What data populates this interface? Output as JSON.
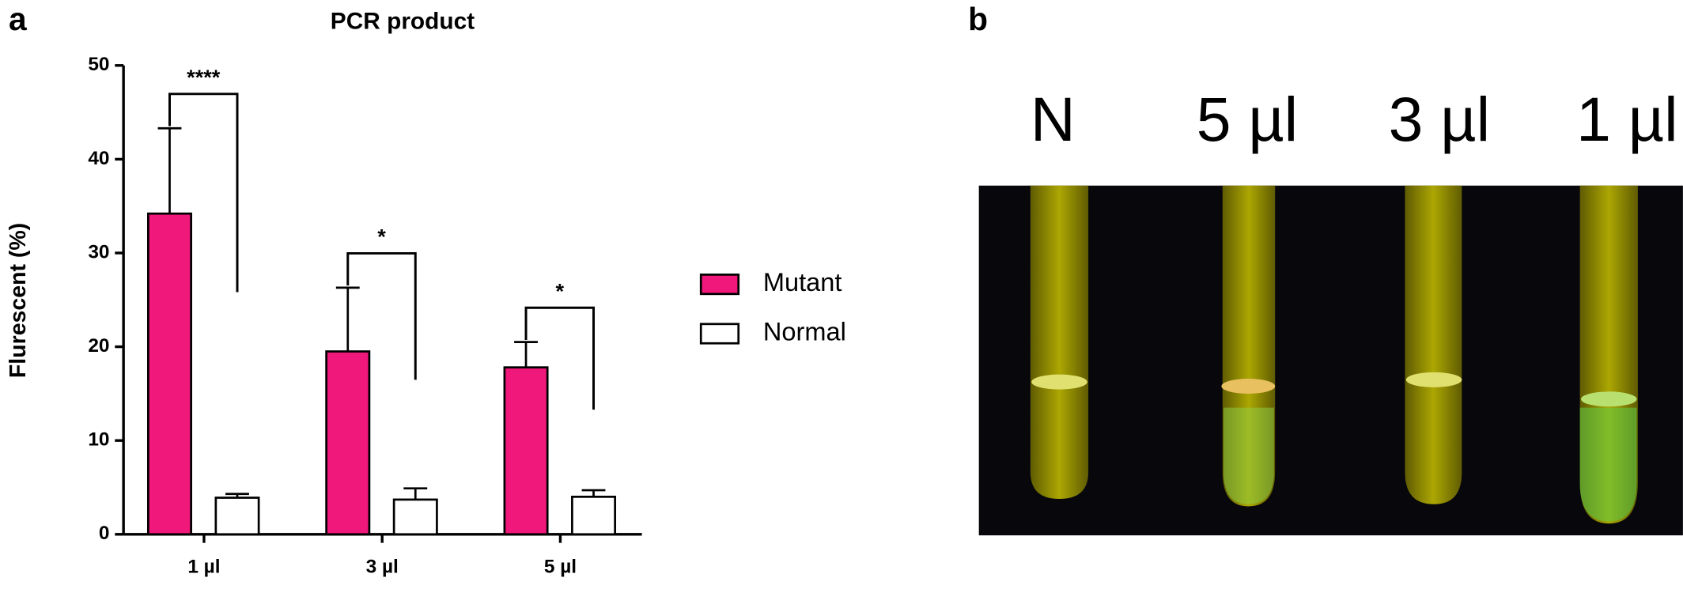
{
  "chart_data": {
    "type": "bar",
    "title": "PCR product",
    "y_label": "Flurescent (%)",
    "categories": [
      "1 µl",
      "3 µl",
      "5 µl"
    ],
    "series": [
      {
        "name": "Mutant",
        "color": "#f0187a",
        "values": [
          34.2,
          19.5,
          17.8
        ],
        "errors": [
          9.1,
          6.8,
          2.7
        ]
      },
      {
        "name": "Normal",
        "color": "#ffffff",
        "values": [
          3.9,
          3.7,
          4.0
        ],
        "errors": [
          0.4,
          1.2,
          0.7
        ]
      }
    ],
    "significance": [
      "****",
      "*",
      "*"
    ],
    "ylim": [
      0,
      50
    ],
    "yticks": [
      0,
      10,
      20,
      30,
      40,
      50
    ]
  },
  "panel_labels": [
    "a",
    "b"
  ],
  "photo": {
    "labels": [
      "N",
      "5 µl",
      "3 µl",
      "1 µl"
    ]
  }
}
